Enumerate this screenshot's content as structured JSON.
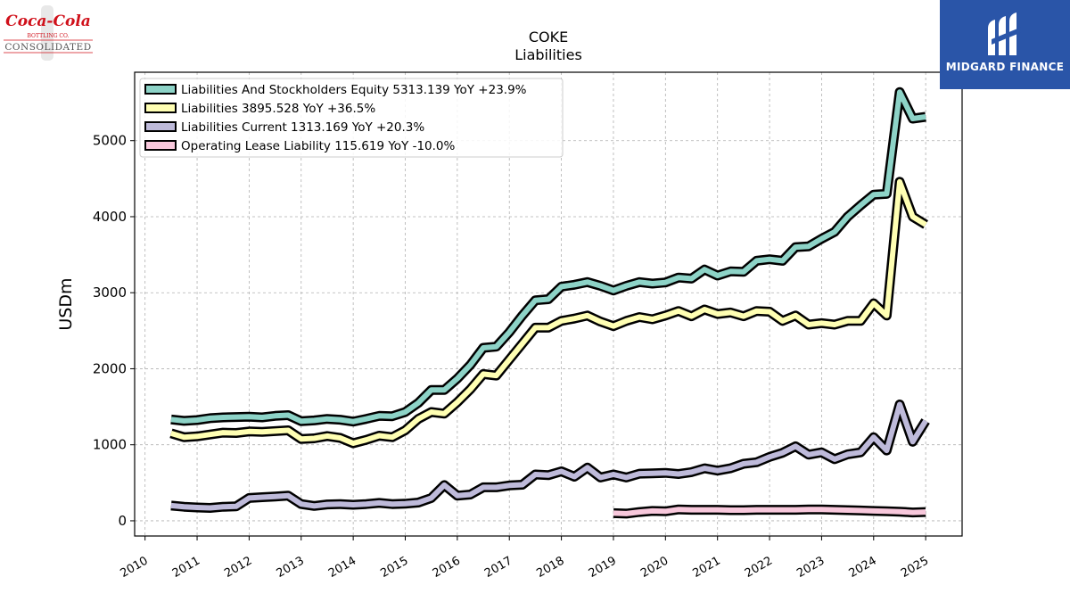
{
  "brand": {
    "name": "MIDGARD FINANCE"
  },
  "company_logo": {
    "wordmark": "Coca-Cola",
    "line1": "BOTTLING CO.",
    "line2": "CONSOLIDATED",
    "color": "#d0101a"
  },
  "chart_data": {
    "type": "line",
    "title": "COKE",
    "subtitle": "Liabilities",
    "ylabel": "USDm",
    "xlabel": "",
    "xlim": [
      2009.8,
      2025.7
    ],
    "ylim": [
      -200,
      5900
    ],
    "yticks": [
      0,
      1000,
      2000,
      3000,
      4000,
      5000
    ],
    "xticks": [
      2010,
      2011,
      2012,
      2013,
      2014,
      2015,
      2016,
      2017,
      2018,
      2019,
      2020,
      2021,
      2022,
      2023,
      2024,
      2025
    ],
    "grid": true,
    "legend_position": "top-left",
    "series": [
      {
        "name": "Liabilities And Stockholders Equity",
        "legend": "Liabilities And Stockholders Equity  5313.139 YoY +23.9%",
        "color": "#8dd3c7",
        "x": [
          2010.5,
          2010.75,
          2011.0,
          2011.25,
          2011.5,
          2011.75,
          2012.0,
          2012.25,
          2012.5,
          2012.75,
          2013.0,
          2013.25,
          2013.5,
          2013.75,
          2014.0,
          2014.25,
          2014.5,
          2014.75,
          2015.0,
          2015.25,
          2015.5,
          2015.75,
          2016.0,
          2016.25,
          2016.5,
          2016.75,
          2017.0,
          2017.25,
          2017.5,
          2017.75,
          2018.0,
          2018.25,
          2018.5,
          2018.75,
          2019.0,
          2019.25,
          2019.5,
          2019.75,
          2020.0,
          2020.25,
          2020.5,
          2020.75,
          2021.0,
          2021.25,
          2021.5,
          2021.75,
          2022.0,
          2022.25,
          2022.5,
          2022.75,
          2023.0,
          2023.25,
          2023.5,
          2023.75,
          2024.0,
          2024.25,
          2024.5,
          2024.75,
          2025.0
        ],
        "y": [
          1333,
          1315,
          1325,
          1350,
          1360,
          1365,
          1370,
          1360,
          1380,
          1390,
          1310,
          1320,
          1340,
          1330,
          1305,
          1340,
          1380,
          1375,
          1430,
          1550,
          1720,
          1720,
          1870,
          2050,
          2275,
          2290,
          2480,
          2700,
          2900,
          2915,
          3080,
          3105,
          3140,
          3090,
          3030,
          3090,
          3140,
          3120,
          3135,
          3200,
          3185,
          3305,
          3225,
          3280,
          3275,
          3420,
          3440,
          3420,
          3600,
          3610,
          3710,
          3800,
          4000,
          4150,
          4290,
          4300,
          5640,
          5290,
          5313
        ]
      },
      {
        "name": "Liabilities",
        "legend": "Liabilities  3895.528 YoY +36.5%",
        "color": "#ffffb3",
        "x": [
          2010.5,
          2010.75,
          2011.0,
          2011.25,
          2011.5,
          2011.75,
          2012.0,
          2012.25,
          2012.5,
          2012.75,
          2013.0,
          2013.25,
          2013.5,
          2013.75,
          2014.0,
          2014.25,
          2014.5,
          2014.75,
          2015.0,
          2015.25,
          2015.5,
          2015.75,
          2016.0,
          2016.25,
          2016.5,
          2016.75,
          2017.0,
          2017.25,
          2017.5,
          2017.75,
          2018.0,
          2018.25,
          2018.5,
          2018.75,
          2019.0,
          2019.25,
          2019.5,
          2019.75,
          2020.0,
          2020.25,
          2020.5,
          2020.75,
          2021.0,
          2021.25,
          2021.5,
          2021.75,
          2022.0,
          2022.25,
          2022.5,
          2022.75,
          2023.0,
          2023.25,
          2023.5,
          2023.75,
          2024.0,
          2024.25,
          2024.5,
          2024.75,
          2025.0
        ],
        "y": [
          1150,
          1100,
          1110,
          1135,
          1160,
          1155,
          1175,
          1170,
          1180,
          1190,
          1075,
          1085,
          1115,
          1090,
          1020,
          1065,
          1120,
          1100,
          1190,
          1340,
          1430,
          1410,
          1560,
          1730,
          1930,
          1910,
          2120,
          2330,
          2540,
          2540,
          2630,
          2660,
          2700,
          2620,
          2560,
          2630,
          2680,
          2650,
          2700,
          2760,
          2690,
          2780,
          2720,
          2740,
          2690,
          2760,
          2750,
          2630,
          2700,
          2580,
          2600,
          2580,
          2630,
          2630,
          2860,
          2700,
          4460,
          4000,
          3896
        ]
      },
      {
        "name": "Liabilities Current",
        "legend": "Liabilities Current  1313.169 YoY +20.3%",
        "color": "#bebada",
        "x": [
          2010.5,
          2010.75,
          2011.0,
          2011.25,
          2011.5,
          2011.75,
          2012.0,
          2012.25,
          2012.5,
          2012.75,
          2013.0,
          2013.25,
          2013.5,
          2013.75,
          2014.0,
          2014.25,
          2014.5,
          2014.75,
          2015.0,
          2015.25,
          2015.5,
          2015.75,
          2016.0,
          2016.25,
          2016.5,
          2016.75,
          2017.0,
          2017.25,
          2017.5,
          2017.75,
          2018.0,
          2018.25,
          2018.5,
          2018.75,
          2019.0,
          2019.25,
          2019.5,
          2019.75,
          2020.0,
          2020.25,
          2020.5,
          2020.75,
          2021.0,
          2021.25,
          2021.5,
          2021.75,
          2022.0,
          2022.25,
          2022.5,
          2022.75,
          2023.0,
          2023.25,
          2023.5,
          2023.75,
          2024.0,
          2024.25,
          2024.5,
          2024.75,
          2025.0
        ],
        "y": [
          200,
          185,
          175,
          170,
          185,
          190,
          300,
          310,
          320,
          330,
          220,
          195,
          215,
          220,
          210,
          220,
          235,
          220,
          225,
          240,
          300,
          470,
          330,
          345,
          440,
          440,
          465,
          475,
          610,
          600,
          650,
          580,
          700,
          570,
          610,
          570,
          620,
          625,
          630,
          615,
          640,
          690,
          660,
          690,
          750,
          770,
          840,
          895,
          980,
          870,
          900,
          810,
          875,
          900,
          1100,
          925,
          1530,
          1040,
          1313
        ]
      },
      {
        "name": "Operating Lease Liability",
        "legend": "Operating Lease Liability  115.619 YoY -10.0%",
        "color": "#f8c8dc",
        "x": [
          2019.0,
          2019.25,
          2019.5,
          2019.75,
          2020.0,
          2020.25,
          2020.5,
          2020.75,
          2021.0,
          2021.25,
          2021.5,
          2021.75,
          2022.0,
          2022.25,
          2022.5,
          2022.75,
          2023.0,
          2023.25,
          2023.5,
          2023.75,
          2024.0,
          2024.25,
          2024.5,
          2024.75,
          2025.0
        ],
        "y": [
          100,
          95,
          115,
          130,
          125,
          150,
          145,
          145,
          145,
          140,
          140,
          145,
          145,
          145,
          145,
          150,
          150,
          145,
          140,
          135,
          130,
          125,
          120,
          110,
          116
        ]
      }
    ]
  }
}
